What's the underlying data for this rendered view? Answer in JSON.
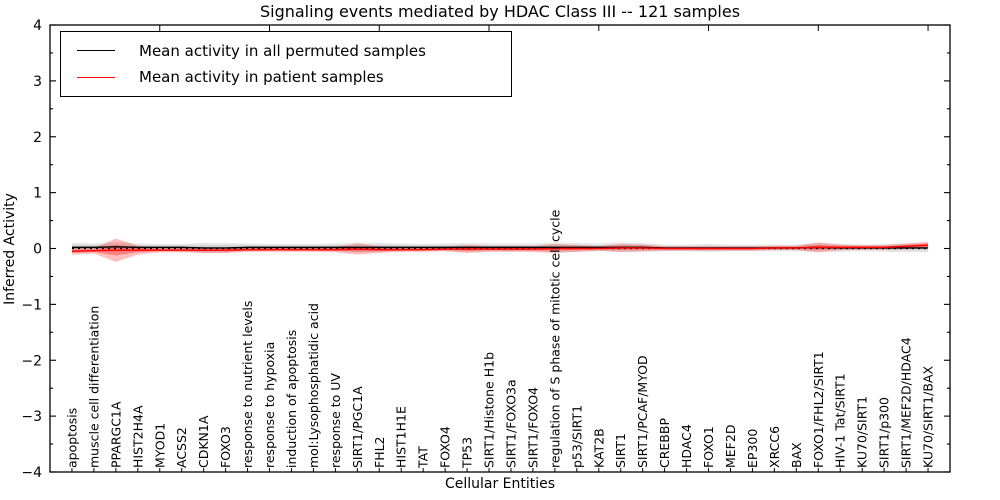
{
  "figure": {
    "title": "Signaling events mediated by HDAC Class III -- 121 samples",
    "xlabel": "Cellular Entities",
    "ylabel": "Inferred Activity"
  },
  "legend": {
    "items": [
      {
        "label": "Mean activity in all permuted samples",
        "color": "#000000"
      },
      {
        "label": "Mean activity in patient samples",
        "color": "#ff0000"
      }
    ]
  },
  "chart_data": {
    "type": "violin-band",
    "title": "Signaling events mediated by HDAC Class III -- 121 samples",
    "xlabel": "Cellular Entities",
    "ylabel": "Inferred Activity",
    "ylim": [
      -4,
      4
    ],
    "yticks": [
      4,
      3,
      2,
      1,
      0,
      -1,
      -2,
      -3,
      -4
    ],
    "grid": false,
    "legend_position": "upper left",
    "zero_line": {
      "style": "dotted",
      "color": "#000000",
      "y": 0
    },
    "colors": {
      "permuted_line": "#000000",
      "patient_line": "#ff0000",
      "permuted_band": "rgba(100,100,100,0.16)",
      "permuted_band_core": "rgba(100,100,100,0.16)",
      "patient_band": "rgba(255,40,40,0.30)",
      "patient_band_core": "rgba(255,40,40,0.40)"
    },
    "categories": [
      "apoptosis",
      "muscle cell differentiation",
      "PPARGC1A",
      "HIST2H4A",
      "MYOD1",
      "ACSS2",
      "CDKN1A",
      "FOXO3",
      "response to nutrient levels",
      "response to hypoxia",
      "induction of apoptosis",
      "mol:Lysophosphatidic acid",
      "response to UV",
      "SIRT1/PGC1A",
      "FHL2",
      "HIST1H1E",
      "TAT",
      "FOXO4",
      "TP53",
      "SIRT1/Histone H1b",
      "SIRT1/FOXO3a",
      "SIRT1/FOXO4",
      "regulation of S phase of mitotic cell cycle",
      "p53/SIRT1",
      "KAT2B",
      "SIRT1",
      "SIRT1/PCAF/MYOD",
      "CREBBP",
      "HDAC4",
      "FOXO1",
      "MEF2D",
      "EP300",
      "XRCC6",
      "BAX",
      "FOXO1/FHL2/SIRT1",
      "HIV-1 Tat/SIRT1",
      "KU70/SIRT1",
      "SIRT1/p300",
      "SIRT1/MEF2D/HDAC4",
      "KU70/SIRT1/BAX"
    ],
    "series": [
      {
        "name": "Mean activity in all permuted samples",
        "color": "#000000",
        "values": [
          0.02,
          0.02,
          0.03,
          0.02,
          0.02,
          0.02,
          0.01,
          0.01,
          0.02,
          0.02,
          0.02,
          0.02,
          0.02,
          0.02,
          0.02,
          0.02,
          0.02,
          0.02,
          0.02,
          0.02,
          0.02,
          0.02,
          0.02,
          0.02,
          0.02,
          0.02,
          0.02,
          0.01,
          0.01,
          0.01,
          0.01,
          0.01,
          0.01,
          0.01,
          0.02,
          0.01,
          0.01,
          0.01,
          0.01,
          0.01
        ]
      },
      {
        "name": "Mean activity in patient samples",
        "color": "#ff0000",
        "values": [
          -0.05,
          -0.04,
          -0.03,
          -0.03,
          -0.03,
          -0.03,
          -0.03,
          -0.03,
          -0.02,
          -0.02,
          -0.02,
          -0.02,
          -0.02,
          -0.01,
          -0.02,
          -0.02,
          -0.02,
          -0.01,
          -0.01,
          -0.01,
          -0.01,
          -0.01,
          0.0,
          0.0,
          0.0,
          0.01,
          0.01,
          0.0,
          0.0,
          0.0,
          0.0,
          0.0,
          0.01,
          0.01,
          0.02,
          0.02,
          0.02,
          0.02,
          0.04,
          0.06
        ]
      }
    ],
    "bands": [
      {
        "name": "permuted-distribution-half-widths",
        "half_widths": [
          0.08,
          0.07,
          0.09,
          0.07,
          0.06,
          0.06,
          0.09,
          0.09,
          0.07,
          0.06,
          0.06,
          0.06,
          0.07,
          0.09,
          0.08,
          0.07,
          0.06,
          0.07,
          0.08,
          0.07,
          0.07,
          0.07,
          0.09,
          0.08,
          0.07,
          0.09,
          0.08,
          0.06,
          0.06,
          0.07,
          0.06,
          0.06,
          0.06,
          0.06,
          0.08,
          0.07,
          0.06,
          0.07,
          0.08,
          0.08
        ]
      },
      {
        "name": "patient-distribution-half-widths",
        "half_widths": [
          0.06,
          0.05,
          0.21,
          0.08,
          0.04,
          0.04,
          0.05,
          0.05,
          0.04,
          0.04,
          0.04,
          0.04,
          0.05,
          0.1,
          0.06,
          0.04,
          0.04,
          0.04,
          0.07,
          0.05,
          0.05,
          0.05,
          0.08,
          0.06,
          0.04,
          0.07,
          0.06,
          0.04,
          0.04,
          0.04,
          0.04,
          0.04,
          0.04,
          0.04,
          0.09,
          0.05,
          0.04,
          0.04,
          0.05,
          0.06
        ]
      }
    ]
  }
}
